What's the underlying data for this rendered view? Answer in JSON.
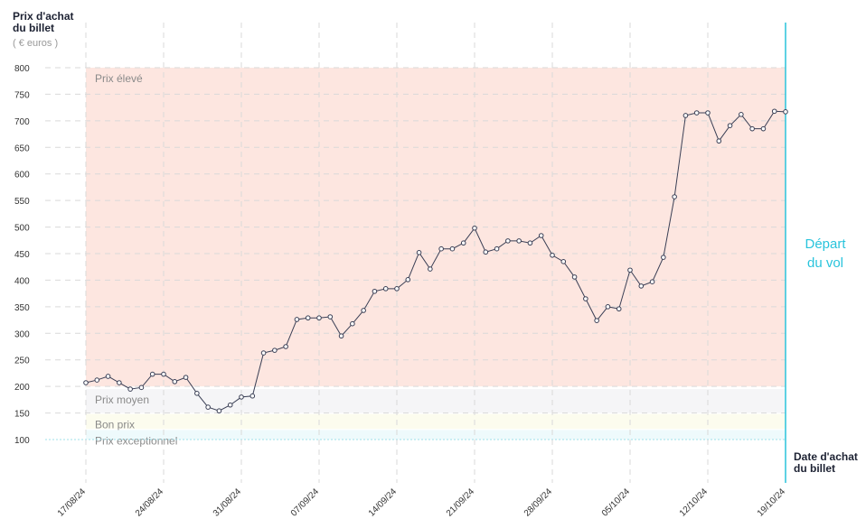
{
  "chart_data": {
    "type": "line",
    "y_title": "Prix d'achat du billet",
    "y_unit": "( € euros )",
    "x_title": "Date d'achat du billet",
    "departure_label": [
      "Départ",
      "du vol"
    ],
    "departure_date": "2024-10-19",
    "departure_color": "#29c4dc",
    "xlim": [
      "2024-08-17",
      "2024-10-19"
    ],
    "xticks": [
      {
        "value": "2024-08-17",
        "label": "17/08/24"
      },
      {
        "value": "2024-08-24",
        "label": "24/08/24"
      },
      {
        "value": "2024-08-31",
        "label": "31/08/24"
      },
      {
        "value": "2024-09-07",
        "label": "07/09/24"
      },
      {
        "value": "2024-09-14",
        "label": "14/09/24"
      },
      {
        "value": "2024-09-21",
        "label": "21/09/24"
      },
      {
        "value": "2024-09-28",
        "label": "28/09/24"
      },
      {
        "value": "2024-10-05",
        "label": "05/10/24"
      },
      {
        "value": "2024-10-12",
        "label": "12/10/24"
      },
      {
        "value": "2024-10-19",
        "label": "19/10/24"
      }
    ],
    "ylim": [
      100,
      800
    ],
    "yticks": [
      100,
      150,
      200,
      250,
      300,
      350,
      400,
      450,
      500,
      550,
      600,
      650,
      700,
      750,
      800
    ],
    "grid": true,
    "bands": [
      {
        "label": "Prix élevé",
        "from": 200,
        "to": 800,
        "color": "#fde6e0"
      },
      {
        "label": "Prix moyen",
        "from": 150,
        "to": 195,
        "color": "#f5f5f7"
      },
      {
        "label": "Bon prix",
        "from": 120,
        "to": 148,
        "color": "#fcfcee"
      },
      {
        "label": "Prix exceptionnel",
        "from": 100,
        "to": 118,
        "color": "#eefafc"
      }
    ],
    "x": [
      "2024-08-17",
      "2024-08-18",
      "2024-08-19",
      "2024-08-20",
      "2024-08-21",
      "2024-08-22",
      "2024-08-23",
      "2024-08-24",
      "2024-08-25",
      "2024-08-26",
      "2024-08-27",
      "2024-08-28",
      "2024-08-29",
      "2024-08-30",
      "2024-08-31",
      "2024-09-01",
      "2024-09-02",
      "2024-09-03",
      "2024-09-04",
      "2024-09-05",
      "2024-09-06",
      "2024-09-07",
      "2024-09-08",
      "2024-09-09",
      "2024-09-10",
      "2024-09-11",
      "2024-09-12",
      "2024-09-13",
      "2024-09-14",
      "2024-09-15",
      "2024-09-16",
      "2024-09-17",
      "2024-09-18",
      "2024-09-19",
      "2024-09-20",
      "2024-09-21",
      "2024-09-22",
      "2024-09-23",
      "2024-09-24",
      "2024-09-25",
      "2024-09-26",
      "2024-09-27",
      "2024-09-28",
      "2024-09-29",
      "2024-09-30",
      "2024-10-01",
      "2024-10-02",
      "2024-10-03",
      "2024-10-04",
      "2024-10-05",
      "2024-10-06",
      "2024-10-07",
      "2024-10-08",
      "2024-10-09",
      "2024-10-10",
      "2024-10-11",
      "2024-10-12",
      "2024-10-13",
      "2024-10-14",
      "2024-10-15",
      "2024-10-16",
      "2024-10-17",
      "2024-10-18",
      "2024-10-19"
    ],
    "series": [
      {
        "color": "#3a3f55",
        "values": [
          207,
          212,
          219,
          207,
          195,
          198,
          223,
          223,
          209,
          217,
          187,
          161,
          154,
          165,
          180,
          182,
          263,
          268,
          275,
          326,
          329,
          329,
          331,
          295,
          318,
          343,
          379,
          384,
          384,
          401,
          452,
          421,
          459,
          459,
          470,
          498,
          453,
          459,
          474,
          474,
          470,
          484,
          447,
          435,
          406,
          365,
          324,
          350,
          346,
          419,
          389,
          397,
          443,
          557,
          710,
          715,
          715,
          662,
          691,
          712,
          685,
          685,
          718,
          717
        ]
      }
    ]
  }
}
